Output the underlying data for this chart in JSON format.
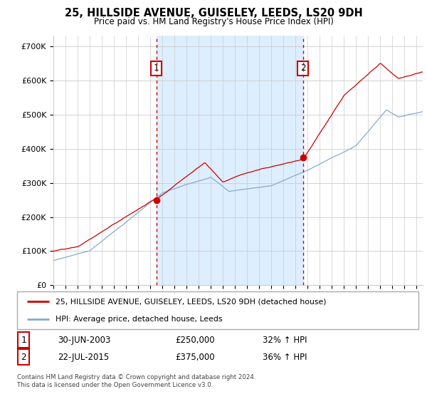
{
  "title": "25, HILLSIDE AVENUE, GUISELEY, LEEDS, LS20 9DH",
  "subtitle": "Price paid vs. HM Land Registry's House Price Index (HPI)",
  "ylabel_ticks": [
    "£0",
    "£100K",
    "£200K",
    "£300K",
    "£400K",
    "£500K",
    "£600K",
    "£700K"
  ],
  "ytick_values": [
    0,
    100000,
    200000,
    300000,
    400000,
    500000,
    600000,
    700000
  ],
  "ylim": [
    0,
    730000
  ],
  "xlim_start": 1995.0,
  "xlim_end": 2025.5,
  "red_color": "#cc0000",
  "blue_color": "#88aacc",
  "shade_color": "#ddeeff",
  "marker1_x": 2003.5,
  "marker1_y": 250000,
  "marker1_label": "1",
  "marker2_x": 2015.6,
  "marker2_y": 375000,
  "marker2_label": "2",
  "legend_line1": "25, HILLSIDE AVENUE, GUISELEY, LEEDS, LS20 9DH (detached house)",
  "legend_line2": "HPI: Average price, detached house, Leeds",
  "table_row1": [
    "1",
    "30-JUN-2003",
    "£250,000",
    "32% ↑ HPI"
  ],
  "table_row2": [
    "2",
    "22-JUL-2015",
    "£375,000",
    "36% ↑ HPI"
  ],
  "footnote": "Contains HM Land Registry data © Crown copyright and database right 2024.\nThis data is licensed under the Open Government Licence v3.0.",
  "background_color": "#ffffff",
  "grid_color": "#cccccc"
}
